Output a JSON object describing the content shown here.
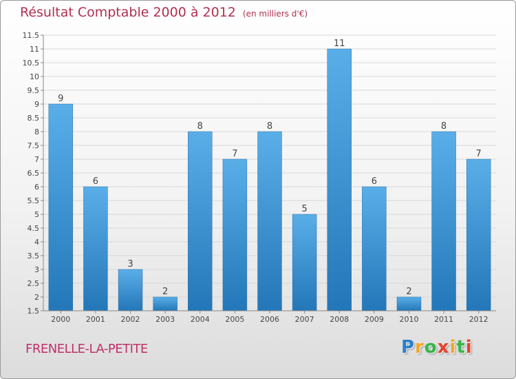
{
  "chart_data": {
    "type": "bar",
    "title": "Résultat Comptable 2000 à 2012",
    "subtitle": "(en milliers d'€)",
    "categories": [
      "2000",
      "2001",
      "2002",
      "2003",
      "2004",
      "2005",
      "2006",
      "2007",
      "2008",
      "2009",
      "2010",
      "2011",
      "2012"
    ],
    "values": [
      9,
      6,
      3,
      2,
      8,
      7,
      8,
      5,
      11,
      6,
      2,
      8,
      7
    ],
    "ylim": [
      1.5,
      11.5
    ],
    "yticks": [
      1.5,
      2,
      2.5,
      3,
      3.5,
      4,
      4.5,
      5,
      5.5,
      6,
      6.5,
      7,
      7.5,
      8,
      8.5,
      9,
      9.5,
      10,
      10.5,
      11,
      11.5
    ],
    "ytick_labels": [
      "1.5",
      "2",
      "2.5",
      "3",
      "3.5",
      "4",
      "4.5",
      "5",
      "5.5",
      "6",
      "6.5",
      "7",
      "7.5",
      "8",
      "8.5",
      "9",
      "9.5",
      "10",
      "10.5",
      "11",
      "11.5"
    ],
    "xlabel": "",
    "ylabel": "",
    "grid": true
  },
  "footer": {
    "commune": "FRENELLE-LA-PETITE",
    "logo": {
      "letters": [
        "P",
        "r",
        "o",
        "x",
        "i",
        "t",
        "i"
      ],
      "colors": [
        "#2a7fc9",
        "#f5a623",
        "#39b54a",
        "#e8412c",
        "#f5a623",
        "#39b54a",
        "#e8412c"
      ]
    }
  },
  "colors": {
    "title": "#b03050",
    "bar_light": "#5aaee8",
    "bar_dark": "#2377b8",
    "axis": "#888888",
    "grid": "#d8d8d8"
  }
}
